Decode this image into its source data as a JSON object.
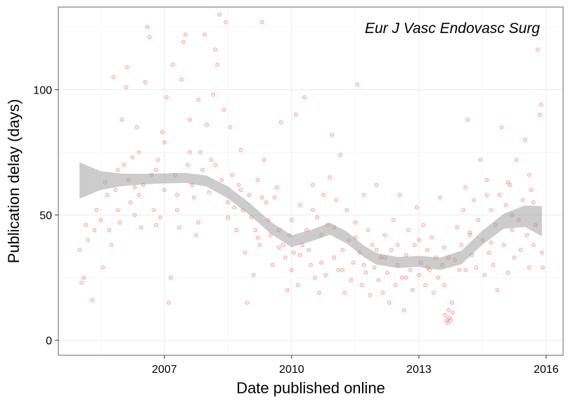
{
  "chart_data": {
    "type": "scatter",
    "title": "",
    "annotation": "Eur J Vasc Endovasc Surg",
    "xlabel": "Date published online",
    "ylabel": "Publication delay (days)",
    "xlim": [
      2004.5,
      2016.4
    ],
    "ylim": [
      -6,
      133
    ],
    "x_ticks": [
      {
        "value": 2007,
        "label": "2007"
      },
      {
        "value": 2010,
        "label": "2010"
      },
      {
        "value": 2013,
        "label": "2013"
      },
      {
        "value": 2016,
        "label": "2016"
      }
    ],
    "y_ticks": [
      {
        "value": 0,
        "label": "0"
      },
      {
        "value": 50,
        "label": "50"
      },
      {
        "value": 100,
        "label": "100"
      }
    ],
    "grid": true,
    "point_color": "#e41a1c",
    "smooth_color": "#999999",
    "points": [
      [
        2005.0,
        36
      ],
      [
        2005.05,
        23
      ],
      [
        2005.1,
        25
      ],
      [
        2005.15,
        46
      ],
      [
        2005.2,
        40
      ],
      [
        2005.3,
        16
      ],
      [
        2005.35,
        44
      ],
      [
        2005.4,
        52
      ],
      [
        2005.5,
        48
      ],
      [
        2005.55,
        29
      ],
      [
        2005.6,
        63
      ],
      [
        2005.65,
        58
      ],
      [
        2005.7,
        44
      ],
      [
        2005.75,
        38
      ],
      [
        2005.8,
        105
      ],
      [
        2005.85,
        60
      ],
      [
        2005.9,
        52
      ],
      [
        2005.95,
        47
      ],
      [
        2006.0,
        88
      ],
      [
        2006.05,
        70
      ],
      [
        2006.1,
        101
      ],
      [
        2006.12,
        109
      ],
      [
        2006.15,
        64
      ],
      [
        2006.2,
        55
      ],
      [
        2006.25,
        73
      ],
      [
        2006.3,
        61
      ],
      [
        2006.35,
        85
      ],
      [
        2006.4,
        58
      ],
      [
        2006.45,
        45
      ],
      [
        2006.5,
        62
      ],
      [
        2006.55,
        103
      ],
      [
        2006.6,
        125
      ],
      [
        2006.65,
        121
      ],
      [
        2006.7,
        66
      ],
      [
        2006.75,
        52
      ],
      [
        2006.8,
        68
      ],
      [
        2006.85,
        72
      ],
      [
        2006.9,
        49
      ],
      [
        2006.95,
        83
      ],
      [
        2007.0,
        60
      ],
      [
        2007.05,
        97
      ],
      [
        2007.1,
        15
      ],
      [
        2007.15,
        25
      ],
      [
        2007.2,
        110
      ],
      [
        2007.25,
        66
      ],
      [
        2007.3,
        58
      ],
      [
        2007.35,
        45
      ],
      [
        2007.4,
        104
      ],
      [
        2007.45,
        119
      ],
      [
        2007.5,
        122
      ],
      [
        2007.55,
        70
      ],
      [
        2007.6,
        88
      ],
      [
        2007.65,
        62
      ],
      [
        2007.7,
        57
      ],
      [
        2007.75,
        42
      ],
      [
        2007.8,
        96
      ],
      [
        2007.85,
        75
      ],
      [
        2007.9,
        68
      ],
      [
        2007.95,
        122
      ],
      [
        2008.0,
        86
      ],
      [
        2008.05,
        59
      ],
      [
        2008.1,
        72
      ],
      [
        2008.15,
        98
      ],
      [
        2008.2,
        116
      ],
      [
        2008.25,
        110
      ],
      [
        2008.3,
        130
      ],
      [
        2008.35,
        64
      ],
      [
        2008.4,
        92
      ],
      [
        2008.45,
        127
      ],
      [
        2008.5,
        55
      ],
      [
        2008.55,
        85
      ],
      [
        2008.6,
        66
      ],
      [
        2008.65,
        53
      ],
      [
        2008.7,
        44
      ],
      [
        2008.75,
        62
      ],
      [
        2008.8,
        76
      ],
      [
        2008.85,
        52
      ],
      [
        2008.9,
        35
      ],
      [
        2008.95,
        15
      ],
      [
        2009.0,
        58
      ],
      [
        2009.05,
        49
      ],
      [
        2009.1,
        26
      ],
      [
        2009.15,
        44
      ],
      [
        2009.2,
        64
      ],
      [
        2009.25,
        38
      ],
      [
        2009.3,
        127
      ],
      [
        2009.35,
        72
      ],
      [
        2009.4,
        55
      ],
      [
        2009.45,
        48
      ],
      [
        2009.5,
        42
      ],
      [
        2009.55,
        30
      ],
      [
        2009.6,
        57
      ],
      [
        2009.65,
        61
      ],
      [
        2009.7,
        44
      ],
      [
        2009.75,
        87
      ],
      [
        2009.8,
        38
      ],
      [
        2009.85,
        33
      ],
      [
        2009.9,
        20
      ],
      [
        2009.95,
        42
      ],
      [
        2010.0,
        28
      ],
      [
        2010.05,
        35
      ],
      [
        2010.1,
        90
      ],
      [
        2010.15,
        22
      ],
      [
        2010.2,
        54
      ],
      [
        2010.25,
        38
      ],
      [
        2010.3,
        97
      ],
      [
        2010.35,
        44
      ],
      [
        2010.4,
        36
      ],
      [
        2010.45,
        30
      ],
      [
        2010.5,
        62
      ],
      [
        2010.55,
        25
      ],
      [
        2010.6,
        49
      ],
      [
        2010.65,
        19
      ],
      [
        2010.7,
        42
      ],
      [
        2010.75,
        58
      ],
      [
        2010.8,
        26
      ],
      [
        2010.85,
        46
      ],
      [
        2010.9,
        65
      ],
      [
        2010.95,
        82
      ],
      [
        2011.0,
        33
      ],
      [
        2011.05,
        56
      ],
      [
        2011.1,
        28
      ],
      [
        2011.15,
        74
      ],
      [
        2011.2,
        36
      ],
      [
        2011.25,
        19
      ],
      [
        2011.3,
        52
      ],
      [
        2011.35,
        40
      ],
      [
        2011.4,
        24
      ],
      [
        2011.45,
        31
      ],
      [
        2011.5,
        47
      ],
      [
        2011.55,
        102
      ],
      [
        2011.6,
        35
      ],
      [
        2011.65,
        22
      ],
      [
        2011.7,
        58
      ],
      [
        2011.75,
        27
      ],
      [
        2011.8,
        44
      ],
      [
        2011.85,
        18
      ],
      [
        2011.9,
        38
      ],
      [
        2011.95,
        29
      ],
      [
        2012.0,
        62
      ],
      [
        2012.05,
        24
      ],
      [
        2012.1,
        33
      ],
      [
        2012.15,
        19
      ],
      [
        2012.2,
        42
      ],
      [
        2012.25,
        27
      ],
      [
        2012.3,
        15
      ],
      [
        2012.35,
        36
      ],
      [
        2012.4,
        48
      ],
      [
        2012.45,
        22
      ],
      [
        2012.5,
        30
      ],
      [
        2012.55,
        58
      ],
      [
        2012.6,
        25
      ],
      [
        2012.65,
        12
      ],
      [
        2012.7,
        34
      ],
      [
        2012.75,
        44
      ],
      [
        2012.8,
        28
      ],
      [
        2012.85,
        20
      ],
      [
        2012.9,
        38
      ],
      [
        2012.95,
        53
      ],
      [
        2013.0,
        26
      ],
      [
        2013.05,
        31
      ],
      [
        2013.1,
        46
      ],
      [
        2013.15,
        22
      ],
      [
        2013.2,
        36
      ],
      [
        2013.25,
        28
      ],
      [
        2013.3,
        41
      ],
      [
        2013.35,
        19
      ],
      [
        2013.4,
        33
      ],
      [
        2013.45,
        25
      ],
      [
        2013.5,
        57
      ],
      [
        2013.55,
        30
      ],
      [
        2013.6,
        37
      ],
      [
        2013.62,
        10
      ],
      [
        2013.65,
        8
      ],
      [
        2013.68,
        7
      ],
      [
        2013.7,
        12
      ],
      [
        2013.72,
        9
      ],
      [
        2013.75,
        8
      ],
      [
        2013.78,
        15
      ],
      [
        2013.8,
        11
      ],
      [
        2013.85,
        32
      ],
      [
        2013.9,
        45
      ],
      [
        2013.95,
        28
      ],
      [
        2014.0,
        38
      ],
      [
        2014.05,
        52
      ],
      [
        2014.1,
        61
      ],
      [
        2014.15,
        88
      ],
      [
        2014.2,
        42
      ],
      [
        2014.25,
        34
      ],
      [
        2014.3,
        56
      ],
      [
        2014.35,
        29
      ],
      [
        2014.4,
        48
      ],
      [
        2014.45,
        72
      ],
      [
        2014.5,
        40
      ],
      [
        2014.55,
        26
      ],
      [
        2014.6,
        64
      ],
      [
        2014.65,
        35
      ],
      [
        2014.7,
        52
      ],
      [
        2014.75,
        30
      ],
      [
        2014.8,
        46
      ],
      [
        2014.85,
        20
      ],
      [
        2014.9,
        58
      ],
      [
        2014.95,
        85
      ],
      [
        2015.0,
        38
      ],
      [
        2015.05,
        54
      ],
      [
        2015.1,
        27
      ],
      [
        2015.15,
        62
      ],
      [
        2015.2,
        44
      ],
      [
        2015.25,
        33
      ],
      [
        2015.3,
        72
      ],
      [
        2015.35,
        48
      ],
      [
        2015.4,
        36
      ],
      [
        2015.45,
        56
      ],
      [
        2015.5,
        80
      ],
      [
        2015.55,
        42
      ],
      [
        2015.6,
        29
      ],
      [
        2015.65,
        60
      ],
      [
        2015.7,
        38
      ],
      [
        2015.75,
        46
      ],
      [
        2015.8,
        116
      ],
      [
        2015.85,
        90
      ],
      [
        2015.88,
        94
      ],
      [
        2015.9,
        35
      ],
      [
        2015.92,
        29
      ],
      [
        2006.3,
        50
      ],
      [
        2006.8,
        46
      ],
      [
        2007.3,
        52
      ],
      [
        2007.8,
        47
      ],
      [
        2008.5,
        49
      ],
      [
        2009.2,
        41
      ],
      [
        2009.7,
        37
      ],
      [
        2010.2,
        34
      ],
      [
        2010.7,
        31
      ],
      [
        2011.2,
        28
      ],
      [
        2011.7,
        30
      ],
      [
        2012.2,
        33
      ],
      [
        2012.7,
        25
      ],
      [
        2013.2,
        29
      ],
      [
        2013.7,
        33
      ],
      [
        2014.2,
        43
      ],
      [
        2014.7,
        39
      ],
      [
        2015.2,
        50
      ],
      [
        2015.7,
        55
      ],
      [
        2005.9,
        68
      ],
      [
        2006.4,
        75
      ],
      [
        2007.0,
        79
      ],
      [
        2007.6,
        75
      ],
      [
        2008.2,
        70
      ],
      [
        2008.8,
        60
      ],
      [
        2009.3,
        57
      ],
      [
        2010.0,
        48
      ],
      [
        2010.5,
        52
      ],
      [
        2011.0,
        45
      ],
      [
        2011.5,
        41
      ],
      [
        2012.0,
        36
      ],
      [
        2012.5,
        38
      ],
      [
        2013.0,
        40
      ],
      [
        2013.6,
        22
      ],
      [
        2014.1,
        28
      ],
      [
        2014.6,
        58
      ],
      [
        2015.1,
        63
      ],
      [
        2015.6,
        66
      ]
    ],
    "smooth": [
      {
        "x": 2005.0,
        "y": 63.5,
        "lo": 56.5,
        "hi": 71
      },
      {
        "x": 2005.5,
        "y": 63.8,
        "lo": 60,
        "hi": 67.5
      },
      {
        "x": 2006.0,
        "y": 64,
        "lo": 61.5,
        "hi": 66.5
      },
      {
        "x": 2006.5,
        "y": 64.3,
        "lo": 62.2,
        "hi": 66.4
      },
      {
        "x": 2007.0,
        "y": 64.6,
        "lo": 62.6,
        "hi": 66.6
      },
      {
        "x": 2007.5,
        "y": 64.8,
        "lo": 62.8,
        "hi": 66.8
      },
      {
        "x": 2008.0,
        "y": 63.5,
        "lo": 61.3,
        "hi": 65.7
      },
      {
        "x": 2008.5,
        "y": 59,
        "lo": 56.6,
        "hi": 61.4
      },
      {
        "x": 2009.0,
        "y": 52.5,
        "lo": 50.1,
        "hi": 54.9
      },
      {
        "x": 2009.5,
        "y": 45,
        "lo": 42.6,
        "hi": 47.4
      },
      {
        "x": 2010.0,
        "y": 39.5,
        "lo": 37.1,
        "hi": 41.9
      },
      {
        "x": 2010.5,
        "y": 42,
        "lo": 39.7,
        "hi": 44.3
      },
      {
        "x": 2010.9,
        "y": 44.5,
        "lo": 42.1,
        "hi": 46.9
      },
      {
        "x": 2011.3,
        "y": 41,
        "lo": 38.6,
        "hi": 43.4
      },
      {
        "x": 2011.7,
        "y": 35.5,
        "lo": 33.2,
        "hi": 37.8
      },
      {
        "x": 2012.0,
        "y": 32.5,
        "lo": 30.2,
        "hi": 34.8
      },
      {
        "x": 2012.5,
        "y": 31,
        "lo": 28.8,
        "hi": 33.2
      },
      {
        "x": 2013.0,
        "y": 31.5,
        "lo": 29.3,
        "hi": 33.7
      },
      {
        "x": 2013.5,
        "y": 30.5,
        "lo": 28,
        "hi": 33
      },
      {
        "x": 2014.0,
        "y": 33,
        "lo": 30.3,
        "hi": 35.7
      },
      {
        "x": 2014.5,
        "y": 41,
        "lo": 38.2,
        "hi": 43.8
      },
      {
        "x": 2015.0,
        "y": 47.5,
        "lo": 44.5,
        "hi": 50.5
      },
      {
        "x": 2015.5,
        "y": 49.5,
        "lo": 45.2,
        "hi": 53.8
      },
      {
        "x": 2015.9,
        "y": 47.5,
        "lo": 41.5,
        "hi": 53.5
      }
    ]
  }
}
